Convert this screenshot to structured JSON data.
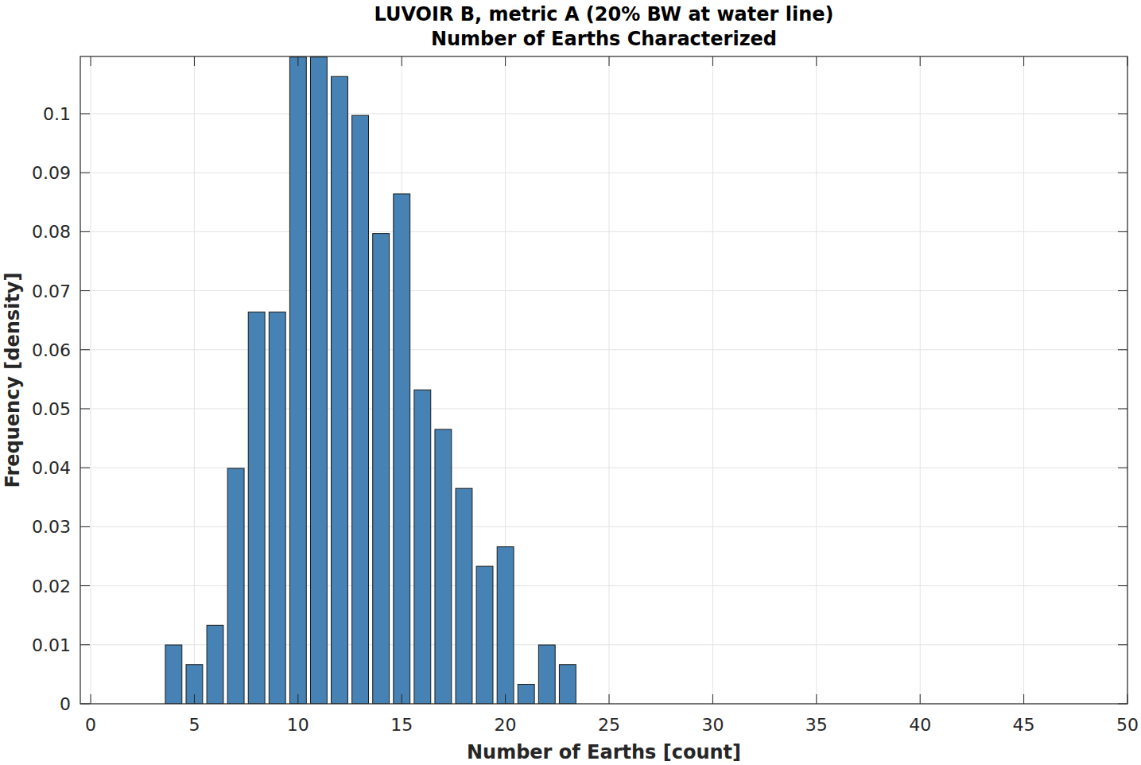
{
  "chart_data": {
    "type": "histogram",
    "title": "LUVOIR B, metric A (20% BW at water line)",
    "subtitle": "Number of Earths Characterized",
    "x_label": "Number of Earths [count]",
    "y_label": "Frequency [density]",
    "bins": [
      3.5,
      4.5,
      5.5,
      6.5,
      7.5,
      8.5,
      9.5,
      10.5,
      11.5,
      12.5,
      13.5,
      14.5,
      15.5,
      16.5,
      17.5,
      18.5,
      19.5,
      20.5,
      21.5,
      22.5,
      23.5
    ],
    "values": [
      0.00997,
      0.00664,
      0.0133,
      0.0399,
      0.0664,
      0.0664,
      0.1096,
      0.1096,
      0.1063,
      0.0997,
      0.0797,
      0.0864,
      0.0532,
      0.0465,
      0.0365,
      0.0233,
      0.0266,
      0.0033,
      0.00997,
      0.00664
    ],
    "color": "#4682b4",
    "xlim": [
      -0.5,
      50
    ],
    "xticks": [
      0,
      5,
      10,
      15,
      20,
      25,
      30,
      35,
      40,
      45,
      50
    ],
    "ylim": [
      0,
      0.1097
    ],
    "yticks": [
      0,
      0.01,
      0.02,
      0.03,
      0.04,
      0.05,
      0.06,
      0.07,
      0.08,
      0.09,
      0.1
    ],
    "grid": true
  }
}
